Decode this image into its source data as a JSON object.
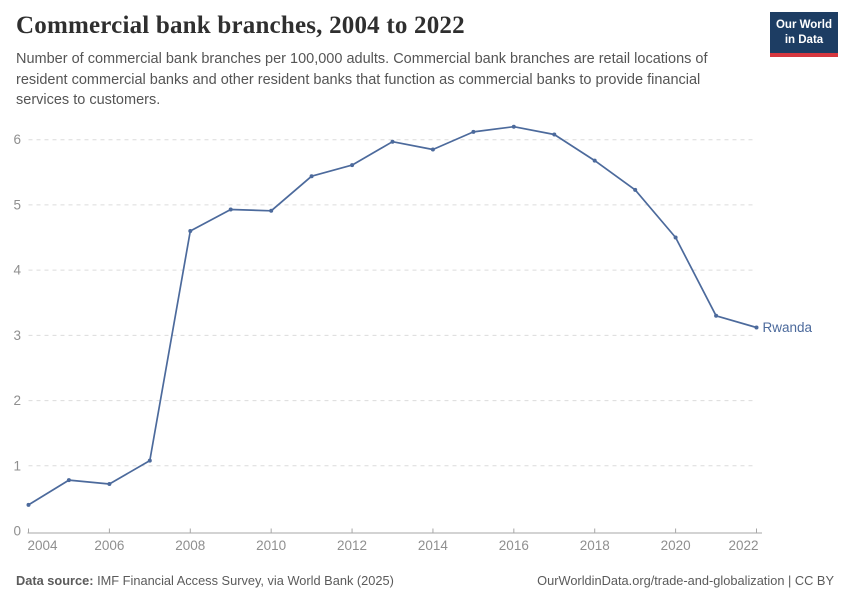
{
  "header": {
    "title": "Commercial bank branches, 2004 to 2022",
    "subtitle": "Number of commercial bank branches per 100,000 adults. Commercial bank branches are retail locations of resident commercial banks and other resident banks that function as commercial banks to provide financial services to customers.",
    "logo": {
      "line1": "Our World",
      "line2": "in Data"
    }
  },
  "chart_data": {
    "type": "line",
    "title": "Commercial bank branches, 2004 to 2022",
    "ylabel": "",
    "xlabel": "",
    "x": [
      2004,
      2005,
      2006,
      2007,
      2008,
      2009,
      2010,
      2011,
      2012,
      2013,
      2014,
      2015,
      2016,
      2017,
      2018,
      2019,
      2020,
      2021,
      2022
    ],
    "series": [
      {
        "name": "Rwanda",
        "color": "#4c6a9c",
        "values": [
          0.4,
          0.78,
          0.72,
          1.08,
          4.6,
          4.93,
          4.91,
          5.44,
          5.61,
          5.97,
          5.85,
          6.12,
          6.2,
          6.08,
          5.68,
          5.23,
          4.5,
          3.3,
          3.12
        ]
      }
    ],
    "xlim": [
      2004,
      2022
    ],
    "ylim": [
      0,
      6
    ],
    "x_ticks": [
      2004,
      2006,
      2008,
      2010,
      2012,
      2014,
      2016,
      2018,
      2020,
      2022
    ],
    "y_ticks": [
      0,
      1,
      2,
      3,
      4,
      5,
      6
    ],
    "grid": "horizontal-dashed",
    "legend": "end-of-line-label",
    "end_label": "Rwanda"
  },
  "footer": {
    "source_label": "Data source:",
    "source_text": " IMF Financial Access Survey, via World Bank (2025)",
    "link_text": "OurWorldinData.org/trade-and-globalization | CC BY"
  },
  "colors": {
    "line": "#4c6a9c",
    "grid": "#dcdcdc",
    "axis_line": "#a7a7a7",
    "axis_text": "#8f8f8f",
    "title": "#2f2f2f",
    "subtitle": "#555555",
    "footer": "#5b5b5b",
    "logo_bg": "#1d3d63",
    "logo_stripe": "#d6373f"
  }
}
